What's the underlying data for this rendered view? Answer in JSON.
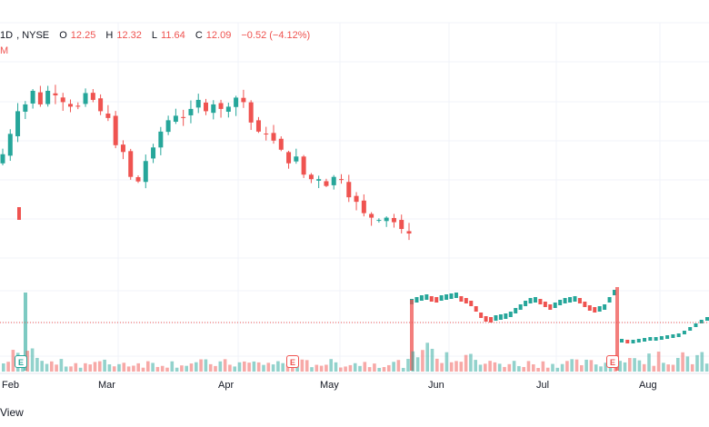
{
  "legend": {
    "interval": "1D",
    "exchange": "NYSE",
    "open_label": "O",
    "open": "12.25",
    "high_label": "H",
    "high": "12.32",
    "low_label": "L",
    "low": "11.64",
    "close_label": "C",
    "close": "12.09",
    "change": "−0.52 (−4.12%)",
    "second_line": "M"
  },
  "footer": {
    "text": "View"
  },
  "colors": {
    "up": "#26a69a",
    "down": "#ef5350",
    "grid": "#f0f3fa",
    "price_line": "#ef5350"
  },
  "chart_data": {
    "type": "candlestick",
    "x_labels": [
      "Feb",
      "Mar",
      "Apr",
      "May",
      "Jun",
      "Jul",
      "Aug"
    ],
    "earnings_markers": [
      "E",
      "E",
      "E"
    ],
    "series_lower": [
      12.6,
      13.5,
      14.5,
      14.8,
      15.4,
      14.8,
      15.4,
      15.2,
      14.9,
      14.7,
      14.7,
      15.3,
      15.0,
      14.5,
      14.2,
      13.0,
      12.7,
      11.6,
      11.4,
      12.3,
      12.9,
      13.6,
      14.1,
      14.3,
      14.2,
      14.6,
      15.0,
      14.5,
      14.8,
      14.6,
      14.7,
      15.1,
      14.9,
      14.0,
      13.6,
      13.5,
      13.2,
      12.8,
      12.2,
      12.5,
      11.7,
      11.5,
      11.5,
      11.2,
      11.6,
      11.5,
      10.7,
      10.5,
      10.0,
      9.8,
      9.7,
      9.8,
      9.6,
      9.3,
      9.1
    ]
  }
}
